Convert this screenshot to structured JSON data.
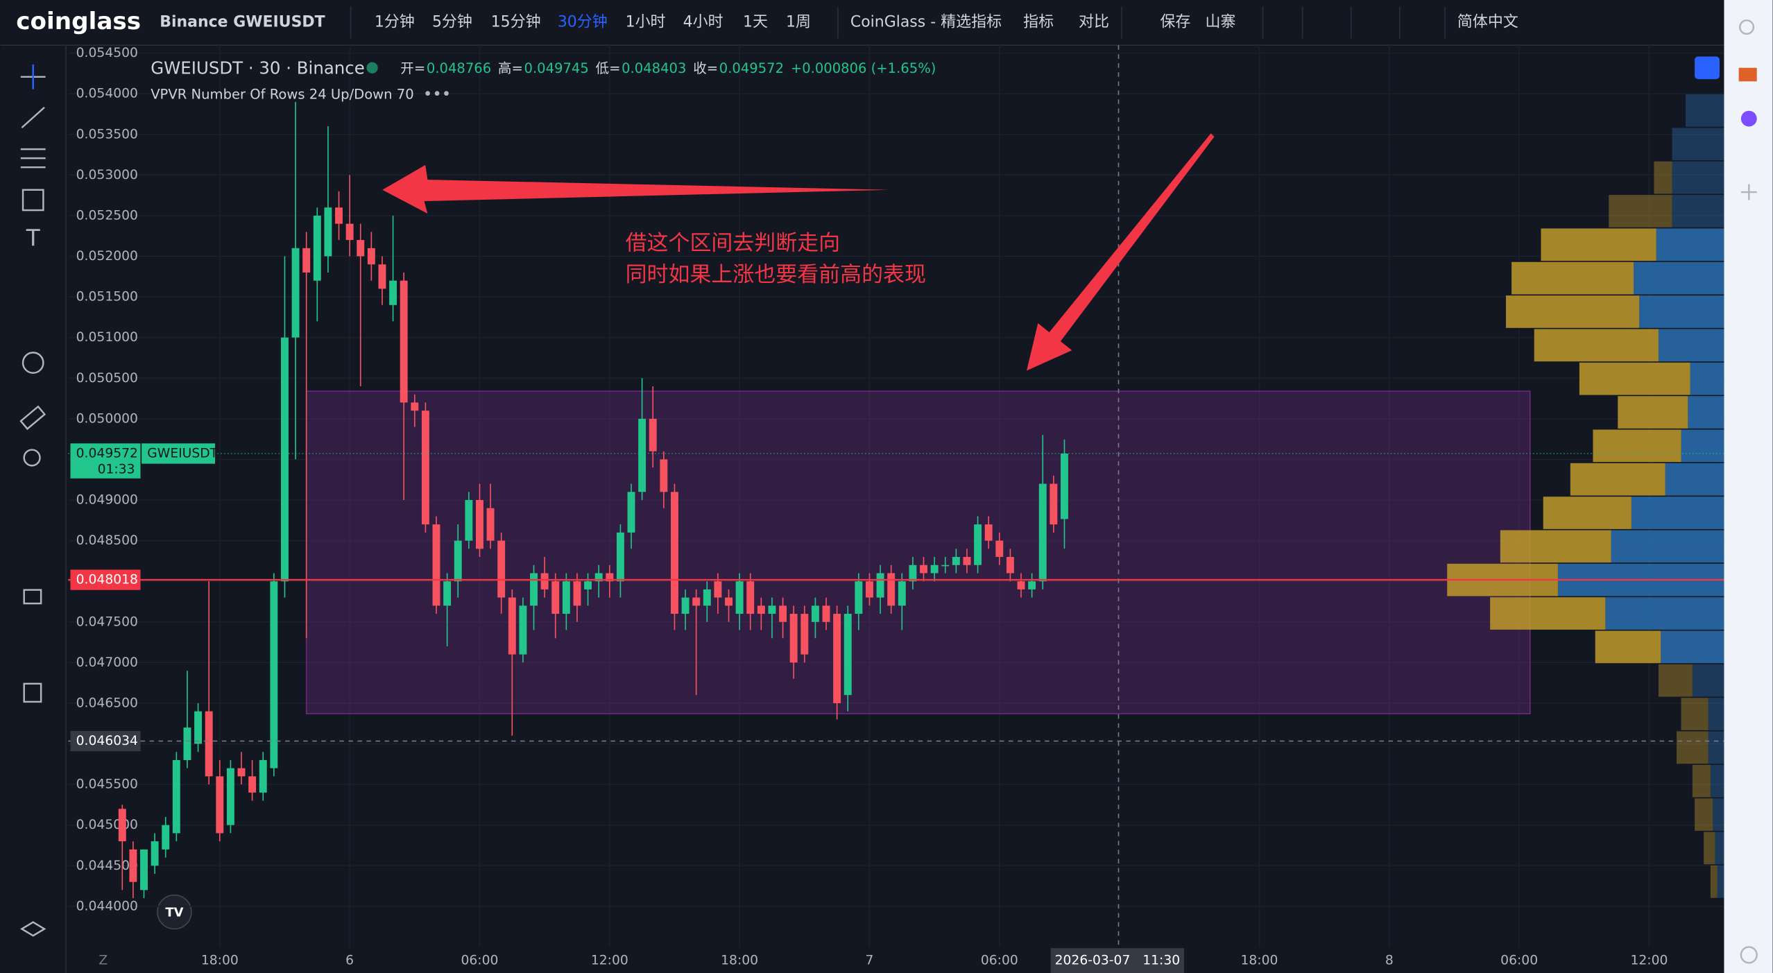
{
  "header": {
    "logo": "coinglass",
    "symbol": "Binance GWEIUSDT",
    "items": [
      "1分钟",
      "5分钟",
      "15分钟",
      "30分钟",
      "1小时",
      "4小时",
      "1天",
      "1周",
      "CoinGlass - 精选指标",
      "指标",
      "对比",
      "保存",
      "山寨",
      "简体中文"
    ],
    "active": 3
  },
  "legend": {
    "title": "GWEIUSDT · 30 · Binance",
    "ohlc": [
      {
        "label": "开=",
        "value": 0.048766
      },
      {
        "label": "高=",
        "value": 0.049745
      },
      {
        "label": "低=",
        "value": 0.048403
      },
      {
        "label": "收=",
        "value": 0.049572
      }
    ],
    "change": "+0.000806 (+1.65%)"
  },
  "annotation": [
    "借这个区间去判断走向",
    "同时如果上涨也要看前高的表现"
  ],
  "chart_data": {
    "type": "candlestick",
    "up_color": "#22c58b",
    "down_color": "#f7525f",
    "ylim": [
      0.044,
      0.0545
    ],
    "yticks": [
      {
        "value": 0.044,
        "label": "0.044000"
      },
      {
        "value": 0.0445,
        "label": "0.044500"
      },
      {
        "value": 0.045,
        "label": "0.045000"
      },
      {
        "value": 0.0455,
        "label": "0.045500"
      },
      {
        "value": 0.046,
        "label": "0.046000"
      },
      {
        "value": 0.0465,
        "label": "0.046500"
      },
      {
        "value": 0.047,
        "label": "0.047000"
      },
      {
        "value": 0.0475,
        "label": "0.047500"
      },
      {
        "value": 0.048,
        "label": "0.048000"
      },
      {
        "value": 0.0485,
        "label": "0.048500"
      },
      {
        "value": 0.049,
        "label": "0.049000"
      },
      {
        "value": 0.0495,
        "label": "0.049500"
      },
      {
        "value": 0.05,
        "label": "0.050000"
      },
      {
        "value": 0.0505,
        "label": "0.050500"
      },
      {
        "value": 0.051,
        "label": "0.051000"
      },
      {
        "value": 0.0515,
        "label": "0.051500"
      },
      {
        "value": 0.052,
        "label": "0.052000"
      },
      {
        "value": 0.0525,
        "label": "0.052500"
      },
      {
        "value": 0.053,
        "label": "0.053000"
      },
      {
        "value": 0.0535,
        "label": "0.053500"
      },
      {
        "value": 0.054,
        "label": "0.054000"
      },
      {
        "value": 0.0545,
        "label": "0.054500"
      }
    ],
    "xlim": [
      -5,
      147.5
    ],
    "xticks": [
      {
        "value": 9,
        "label": "18:00"
      },
      {
        "value": 21,
        "label": "6"
      },
      {
        "value": 33,
        "label": "06:00"
      },
      {
        "value": 45,
        "label": "12:00"
      },
      {
        "value": 57,
        "label": "18:00"
      },
      {
        "value": 69,
        "label": "7"
      },
      {
        "value": 81,
        "label": "06:00"
      },
      {
        "value": 105,
        "label": "18:00"
      },
      {
        "value": 117,
        "label": "8"
      },
      {
        "value": 129,
        "label": "06:00"
      },
      {
        "value": 141,
        "label": "12:00"
      }
    ],
    "crosshair": {
      "x": {
        "value": 92,
        "label": "2026-03-07   11:30"
      },
      "y": {
        "value": 0.046034,
        "label": "0.046034"
      }
    },
    "last_price": {
      "value": 0.049572,
      "label": "0.049572",
      "countdown": "01:33",
      "symbol": "GWEIUSDT"
    },
    "hline": {
      "value": 0.048018,
      "label": "0.048018",
      "color": "#f23645"
    },
    "zone": {
      "x": [
        17,
        130
      ],
      "y": [
        0.04637,
        0.05034
      ],
      "color": "#7b2d8e"
    },
    "open": [
      0.0452,
      0.0447,
      0.0442,
      0.0445,
      0.0447,
      0.0449,
      0.0458,
      0.046,
      0.0464,
      0.0456,
      0.045,
      0.0457,
      0.0456,
      0.0454,
      0.0457,
      0.048,
      0.051,
      0.0521,
      0.0517,
      0.052,
      0.0526,
      0.0524,
      0.0522,
      0.0521,
      0.0519,
      0.0514,
      0.0517,
      0.0502,
      0.0501,
      0.0487,
      0.0477,
      0.048,
      0.0485,
      0.049,
      0.0489,
      0.0485,
      0.0478,
      0.0471,
      0.0477,
      0.0481,
      0.048,
      0.0476,
      0.048,
      0.0479,
      0.048,
      0.0481,
      0.048,
      0.0486,
      0.0491,
      0.05,
      0.0495,
      0.0491,
      0.0476,
      0.0478,
      0.0477,
      0.048,
      0.0478,
      0.0476,
      0.048,
      0.0477,
      0.0476,
      0.0477,
      0.0476,
      0.0476,
      0.0475,
      0.0477,
      0.0476,
      0.0466,
      0.0476,
      0.048,
      0.0478,
      0.0481,
      0.0477,
      0.048,
      0.0482,
      0.0481,
      0.0482,
      0.0482,
      0.0483,
      0.0482,
      0.0487,
      0.0485,
      0.0483,
      0.048,
      0.0479,
      0.048,
      0.0492,
      0.048766
    ],
    "high": [
      0.04525,
      0.0448,
      0.0447,
      0.0449,
      0.0451,
      0.0459,
      0.0469,
      0.0465,
      0.048,
      0.0458,
      0.0458,
      0.0459,
      0.0458,
      0.0459,
      0.0481,
      0.052,
      0.0539,
      0.0523,
      0.0526,
      0.0536,
      0.0528,
      0.053,
      0.0524,
      0.0523,
      0.052,
      0.0525,
      0.0518,
      0.0503,
      0.0502,
      0.0488,
      0.0481,
      0.0487,
      0.0491,
      0.0492,
      0.0492,
      0.0486,
      0.0479,
      0.0478,
      0.0482,
      0.0483,
      0.0481,
      0.0481,
      0.0481,
      0.0481,
      0.0482,
      0.0482,
      0.0487,
      0.0492,
      0.0505,
      0.0504,
      0.0496,
      0.0492,
      0.0479,
      0.0479,
      0.048,
      0.0481,
      0.0479,
      0.0481,
      0.0481,
      0.0478,
      0.0478,
      0.0478,
      0.0477,
      0.0477,
      0.0478,
      0.0478,
      0.0477,
      0.0477,
      0.0481,
      0.0481,
      0.0482,
      0.0482,
      0.0481,
      0.0483,
      0.0483,
      0.0483,
      0.0483,
      0.0484,
      0.0484,
      0.0488,
      0.0488,
      0.0486,
      0.0484,
      0.0481,
      0.0481,
      0.0498,
      0.0493,
      0.049745
    ],
    "low": [
      0.0442,
      0.0441,
      0.0441,
      0.0444,
      0.0446,
      0.0448,
      0.0457,
      0.0459,
      0.0455,
      0.0448,
      0.0449,
      0.0455,
      0.0453,
      0.0453,
      0.0456,
      0.0478,
      0.0495,
      0.0473,
      0.0512,
      0.0518,
      0.0522,
      0.052,
      0.0504,
      0.0517,
      0.0514,
      0.0512,
      0.049,
      0.0499,
      0.0486,
      0.0476,
      0.0472,
      0.0478,
      0.0484,
      0.0483,
      0.0484,
      0.0476,
      0.0461,
      0.047,
      0.0474,
      0.0478,
      0.0473,
      0.0474,
      0.0475,
      0.0477,
      0.0478,
      0.0478,
      0.0478,
      0.0484,
      0.049,
      0.0494,
      0.0489,
      0.0474,
      0.0474,
      0.0466,
      0.0475,
      0.0476,
      0.0475,
      0.0474,
      0.0474,
      0.0474,
      0.0473,
      0.0473,
      0.0468,
      0.047,
      0.0473,
      0.0474,
      0.0463,
      0.0464,
      0.0474,
      0.0477,
      0.0476,
      0.0476,
      0.0474,
      0.0479,
      0.048,
      0.048,
      0.0481,
      0.0481,
      0.0481,
      0.0481,
      0.0484,
      0.0482,
      0.048,
      0.0478,
      0.0478,
      0.0479,
      0.0486,
      0.048403
    ],
    "close": [
      0.0448,
      0.0443,
      0.0447,
      0.0448,
      0.045,
      0.0458,
      0.0462,
      0.0464,
      0.0456,
      0.0449,
      0.0457,
      0.0456,
      0.0454,
      0.0458,
      0.048,
      0.051,
      0.0521,
      0.0518,
      0.0525,
      0.0526,
      0.0524,
      0.0522,
      0.052,
      0.0519,
      0.0516,
      0.0517,
      0.0502,
      0.0501,
      0.0487,
      0.0477,
      0.048,
      0.0485,
      0.049,
      0.0484,
      0.0485,
      0.0478,
      0.0471,
      0.0477,
      0.0481,
      0.0479,
      0.0476,
      0.048,
      0.0477,
      0.048,
      0.0481,
      0.048,
      0.0486,
      0.0491,
      0.05,
      0.0496,
      0.0491,
      0.0476,
      0.0478,
      0.0477,
      0.0479,
      0.0478,
      0.0477,
      0.048,
      0.0476,
      0.0476,
      0.0477,
      0.0475,
      0.047,
      0.0471,
      0.0477,
      0.0475,
      0.0465,
      0.0476,
      0.048,
      0.0478,
      0.0481,
      0.0477,
      0.048,
      0.0482,
      0.0481,
      0.0482,
      0.0482,
      0.0483,
      0.0482,
      0.0487,
      0.0485,
      0.0483,
      0.0481,
      0.0479,
      0.048,
      0.0492,
      0.0487,
      0.049572
    ],
    "volume_profile": {
      "title": "VPVR Number Of Rows 24 Up/Down 70",
      "up_color": "#2a6fb0",
      "down_color": "#c09a2a",
      "up": [
        34,
        46,
        46,
        46,
        60,
        80,
        75,
        58,
        30,
        32,
        38,
        52,
        82,
        100,
        147,
        105,
        56,
        28,
        14,
        14,
        12,
        10,
        8,
        6
      ],
      "down": [
        0,
        0,
        16,
        56,
        102,
        108,
        118,
        110,
        98,
        62,
        78,
        84,
        78,
        98,
        98,
        102,
        58,
        30,
        24,
        28,
        16,
        16,
        10,
        6
      ]
    }
  }
}
